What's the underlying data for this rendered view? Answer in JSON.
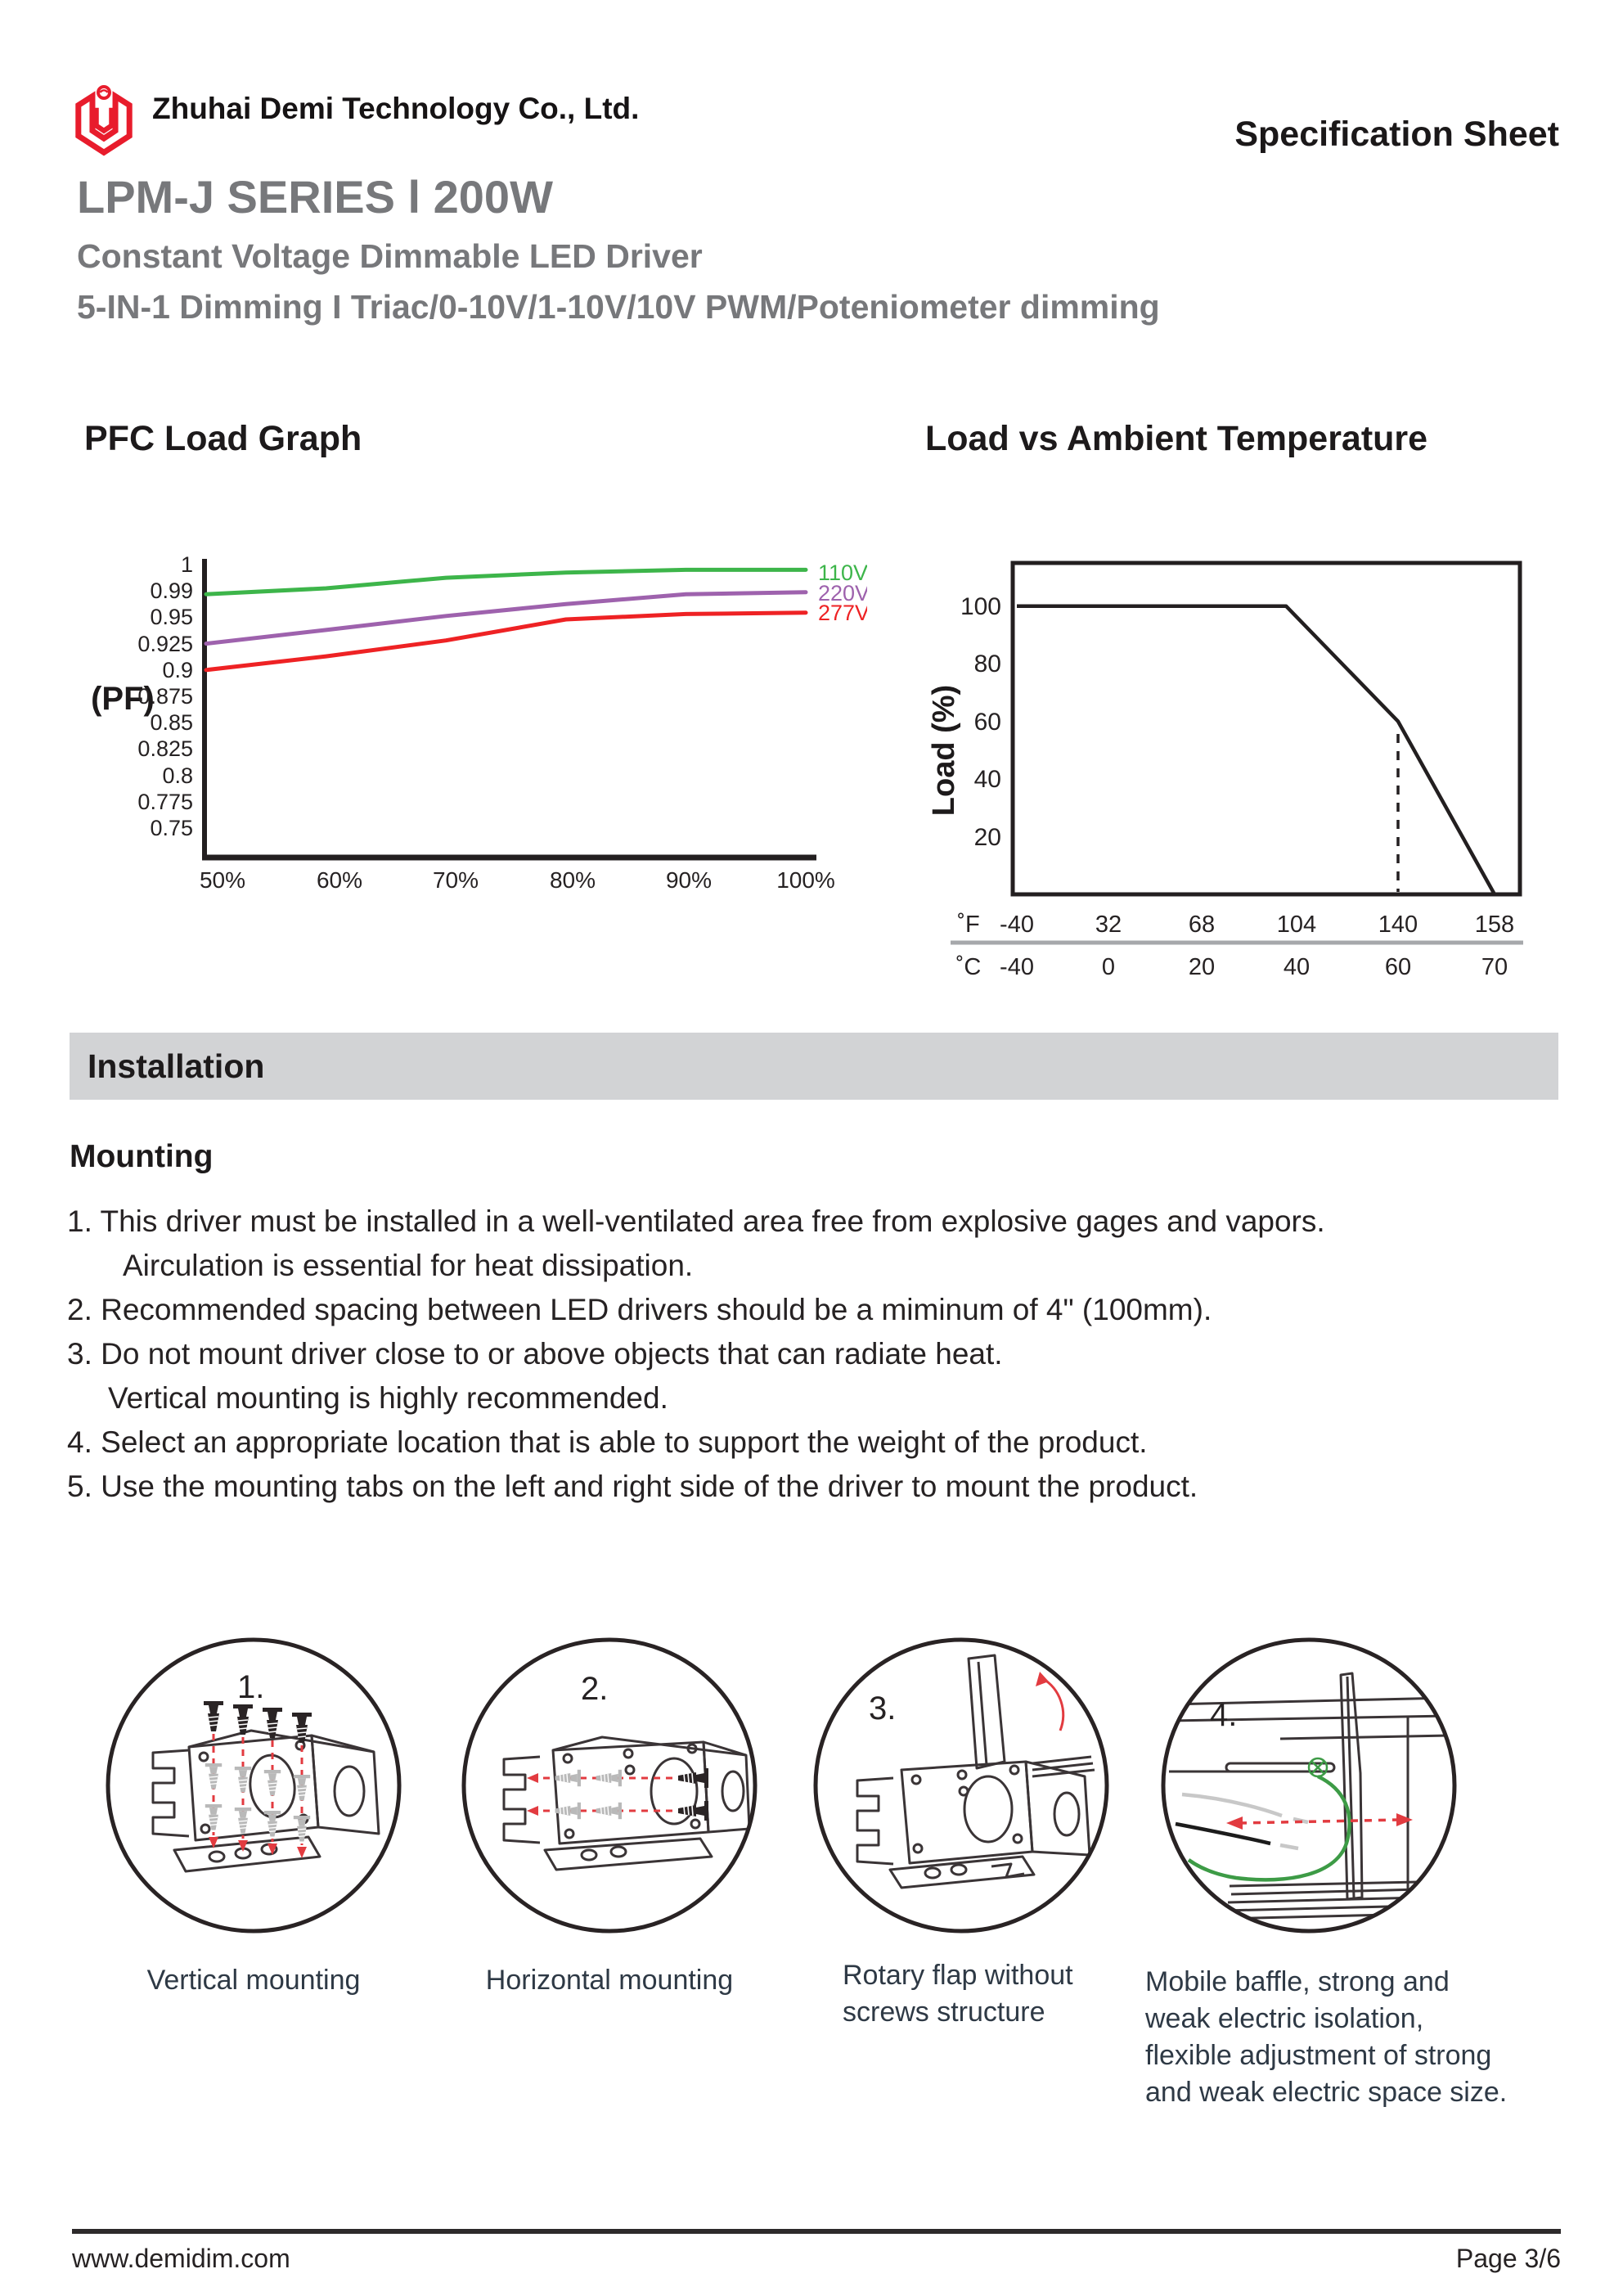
{
  "header": {
    "company": "Zhuhai Demi Technology Co., Ltd.",
    "doc_type": "Specification Sheet",
    "series_title": "LPM-J SERIES l 200W",
    "subtitle_line1": "Constant Voltage Dimmable LED Driver",
    "subtitle_line2": "5-IN-1 Dimming I  Triac/0-10V/1-10V/10V PWM/Poteniometer dimming"
  },
  "colors": {
    "logo_red": "#e81c2c",
    "title_gray": "#77787b",
    "series_110v": "#3db54a",
    "series_220v": "#9e62ad",
    "series_277v": "#ee2224",
    "red_dashed": "#e23b40",
    "installation_bar_bg": "#d2d3d5",
    "caption_text": "#2e3945",
    "axis_divider_gray": "#a6a8ab"
  },
  "chart_data": [
    {
      "type": "line",
      "title": "PFC Load Graph",
      "ylabel": "(PF)",
      "xlabel": "",
      "x_ticks": [
        "50%",
        "60%",
        "70%",
        "80%",
        "90%",
        "100%"
      ],
      "x_percent": [
        50,
        60,
        70,
        80,
        90,
        100
      ],
      "y_ticks": [
        "1",
        "0.99",
        "0.95",
        "0.925",
        "0.9",
        "0.875",
        "0.85",
        "0.825",
        "0.8",
        "0.775",
        "0.75"
      ],
      "y_scale_note": "tick labels evenly spaced (non-linear PF scale)",
      "grid": false,
      "legend_position": "right",
      "series": [
        {
          "name": "110V",
          "color": "#3db54a",
          "values": [
            0.985,
            0.991,
            0.995,
            0.997,
            0.998,
            0.998
          ]
        },
        {
          "name": "220V",
          "color": "#9e62ad",
          "values": [
            0.925,
            0.938,
            0.952,
            0.97,
            0.985,
            0.988
          ]
        },
        {
          "name": "277V",
          "color": "#ee2224",
          "values": [
            0.9,
            0.913,
            0.928,
            0.948,
            0.955,
            0.957
          ]
        }
      ]
    },
    {
      "type": "line",
      "title": "Load vs Ambient Temperature",
      "ylabel": "Load (%)",
      "y_ticks": [
        100,
        80,
        60,
        40,
        20
      ],
      "x_ticks_f": [
        -40,
        32,
        68,
        104,
        140,
        158
      ],
      "x_ticks_c": [
        -40,
        0,
        20,
        40,
        60,
        70
      ],
      "x_axis_unit_labels": {
        "f": "˚F",
        "c": "˚C"
      },
      "line_points_f_load": [
        [
          -40,
          100
        ],
        [
          100,
          100
        ],
        [
          140,
          60
        ],
        [
          158,
          0
        ]
      ],
      "dashed_guide_f": 140,
      "grid": false
    }
  ],
  "installation": {
    "section_title": "Installation",
    "subsection_title": "Mounting",
    "items": [
      "1. This driver must be installed in a well-ventilated area free from explosive gages and vapors.",
      "Airculation is essential for heat dissipation.",
      "2. Recommended spacing between LED drivers should be a miminum of 4\" (100mm).",
      "3. Do not mount driver close to or above objects that can radiate heat.",
      "Vertical mounting is highly recommended.",
      "4. Select an appropriate location that is able to support the weight of the product.",
      "5. Use the mounting tabs on the left and right side of the driver to mount the product."
    ]
  },
  "figures": [
    {
      "number": "1.",
      "caption": "Vertical mounting"
    },
    {
      "number": "2.",
      "caption": "Horizontal mounting"
    },
    {
      "number": "3.",
      "caption": "Rotary flap without screws structure"
    },
    {
      "number": "4.",
      "caption": "Mobile baffle, strong and weak electric isolation, flexible adjustment of strong and weak electric space size."
    }
  ],
  "footer": {
    "website": "www.demidim.com",
    "page": "Page 3/6"
  }
}
